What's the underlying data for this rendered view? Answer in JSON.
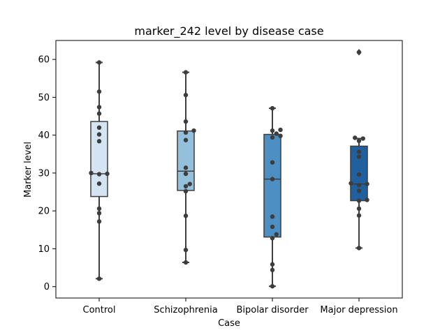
{
  "chart_data": {
    "type": "box",
    "title": "marker_242 level by disease case",
    "xlabel": "Case",
    "ylabel": "Marker level",
    "ylim": [
      -3,
      65
    ],
    "yticks": [
      0,
      10,
      20,
      30,
      40,
      50,
      60
    ],
    "grid": false,
    "categories": [
      "Control",
      "Schizophrenia",
      "Bipolar disorder",
      "Major depression"
    ],
    "colors": [
      "#d4e4f2",
      "#94c0dc",
      "#4d8fc2",
      "#21609f"
    ],
    "boxes": [
      {
        "q1": 23.8,
        "median": 29.8,
        "q3": 43.6,
        "whisker_low": 2.1,
        "whisker_high": 59.2,
        "outliers": []
      },
      {
        "q1": 25.4,
        "median": 30.5,
        "q3": 41.1,
        "whisker_low": 6.4,
        "whisker_high": 56.6,
        "outliers": []
      },
      {
        "q1": 13.1,
        "median": 28.4,
        "q3": 40.2,
        "whisker_low": 0.1,
        "whisker_high": 47.1,
        "outliers": []
      },
      {
        "q1": 22.7,
        "median": 27.1,
        "q3": 37.1,
        "whisker_low": 10.2,
        "whisker_high": 39.1,
        "outliers": [
          61.9
        ]
      }
    ],
    "points": [
      [
        59.2,
        51.5,
        47.4,
        45.7,
        42.0,
        40.2,
        38.4,
        30.0,
        29.8,
        29.7,
        27.2,
        20.6,
        19.4,
        17.2,
        2.1
      ],
      [
        56.6,
        50.6,
        43.6,
        41.2,
        40.7,
        38.7,
        31.4,
        29.8,
        27.1,
        26.5,
        25.2,
        18.7,
        9.7,
        6.4
      ],
      [
        47.1,
        41.4,
        41.2,
        40.4,
        39.8,
        39.4,
        32.8,
        28.4,
        18.5,
        15.8,
        13.8,
        12.8,
        5.9,
        4.4,
        0.1
      ],
      [
        61.9,
        39.3,
        39.1,
        38.5,
        35.6,
        34.3,
        29.6,
        27.3,
        27.1,
        26.8,
        25.3,
        22.9,
        22.7,
        20.6,
        18.8,
        10.2
      ]
    ]
  }
}
